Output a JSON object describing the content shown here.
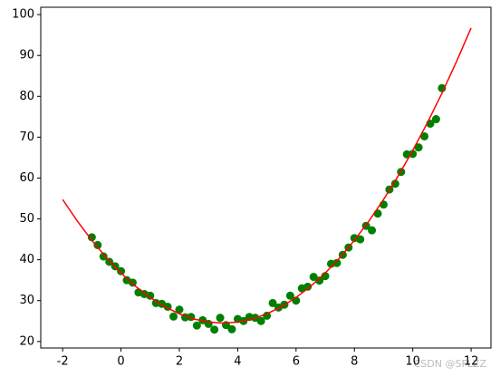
{
  "chart_data": {
    "type": "scatter",
    "xlim": [
      -2.75,
      12.68
    ],
    "ylim": [
      18.4,
      101.8
    ],
    "xticks": [
      -2,
      0,
      2,
      4,
      6,
      8,
      10,
      12
    ],
    "yticks": [
      20,
      30,
      40,
      50,
      60,
      70,
      80,
      90,
      100
    ],
    "watermark": "CSDN @SFLZZ",
    "series": [
      {
        "type": "scatter",
        "color": "#008000",
        "x": [
          -1,
          -0.8,
          -0.6,
          -0.4,
          -0.2,
          0,
          0.2,
          0.4,
          0.6,
          0.8,
          1.0,
          1.2,
          1.4,
          1.6,
          1.8,
          2.0,
          2.2,
          2.4,
          2.6,
          2.8,
          3.0,
          3.2,
          3.4,
          3.6,
          3.8,
          4.0,
          4.2,
          4.4,
          4.6,
          4.8,
          5.0,
          5.2,
          5.4,
          5.6,
          5.8,
          6.0,
          6.2,
          6.4,
          6.6,
          6.8,
          7.0,
          7.2,
          7.4,
          7.6,
          7.8,
          8.0,
          8.2,
          8.4,
          8.6,
          8.8,
          9.0,
          9.2,
          9.4,
          9.6,
          9.8,
          10.0,
          10.2,
          10.4,
          10.6,
          10.8,
          11.0
        ],
        "values": [
          45.5,
          43.6,
          40.8,
          39.5,
          38.4,
          37.2,
          35.0,
          34.4,
          32.0,
          31.6,
          31.2,
          29.4,
          29.2,
          28.5,
          26.1,
          27.8,
          25.9,
          26.0,
          23.9,
          25.2,
          24.3,
          22.9,
          25.8,
          24.0,
          23.0,
          25.5,
          25.0,
          26.0,
          25.8,
          25.0,
          26.3,
          29.4,
          28.3,
          29.0,
          31.2,
          30.0,
          33.0,
          33.4,
          35.8,
          34.9,
          36.0,
          39.0,
          39.2,
          41.2,
          43.0,
          45.3,
          45.0,
          48.3,
          47.2,
          51.3,
          53.5,
          57.2,
          58.6,
          61.5,
          65.8,
          65.9,
          67.5,
          70.2,
          73.3,
          74.4,
          82.0
        ]
      },
      {
        "type": "line",
        "color": "#ff0000",
        "x": [
          -2,
          -1.5,
          -1,
          -0.5,
          0,
          0.5,
          1,
          1.5,
          2,
          2.5,
          3,
          3.5,
          4,
          4.5,
          5,
          5.5,
          6,
          6.5,
          7,
          7.5,
          8,
          8.5,
          9,
          9.5,
          10,
          10.5,
          11,
          11.5,
          12
        ],
        "values": [
          54.75,
          49.5,
          44.75,
          40.5,
          36.75,
          33.5,
          30.75,
          28.5,
          26.75,
          25.5,
          24.75,
          24.5,
          24.75,
          25.5,
          26.75,
          28.5,
          30.75,
          33.5,
          36.75,
          40.5,
          44.75,
          49.5,
          54.75,
          60.5,
          66.75,
          73.5,
          80.75,
          88.5,
          96.75
        ]
      }
    ]
  }
}
